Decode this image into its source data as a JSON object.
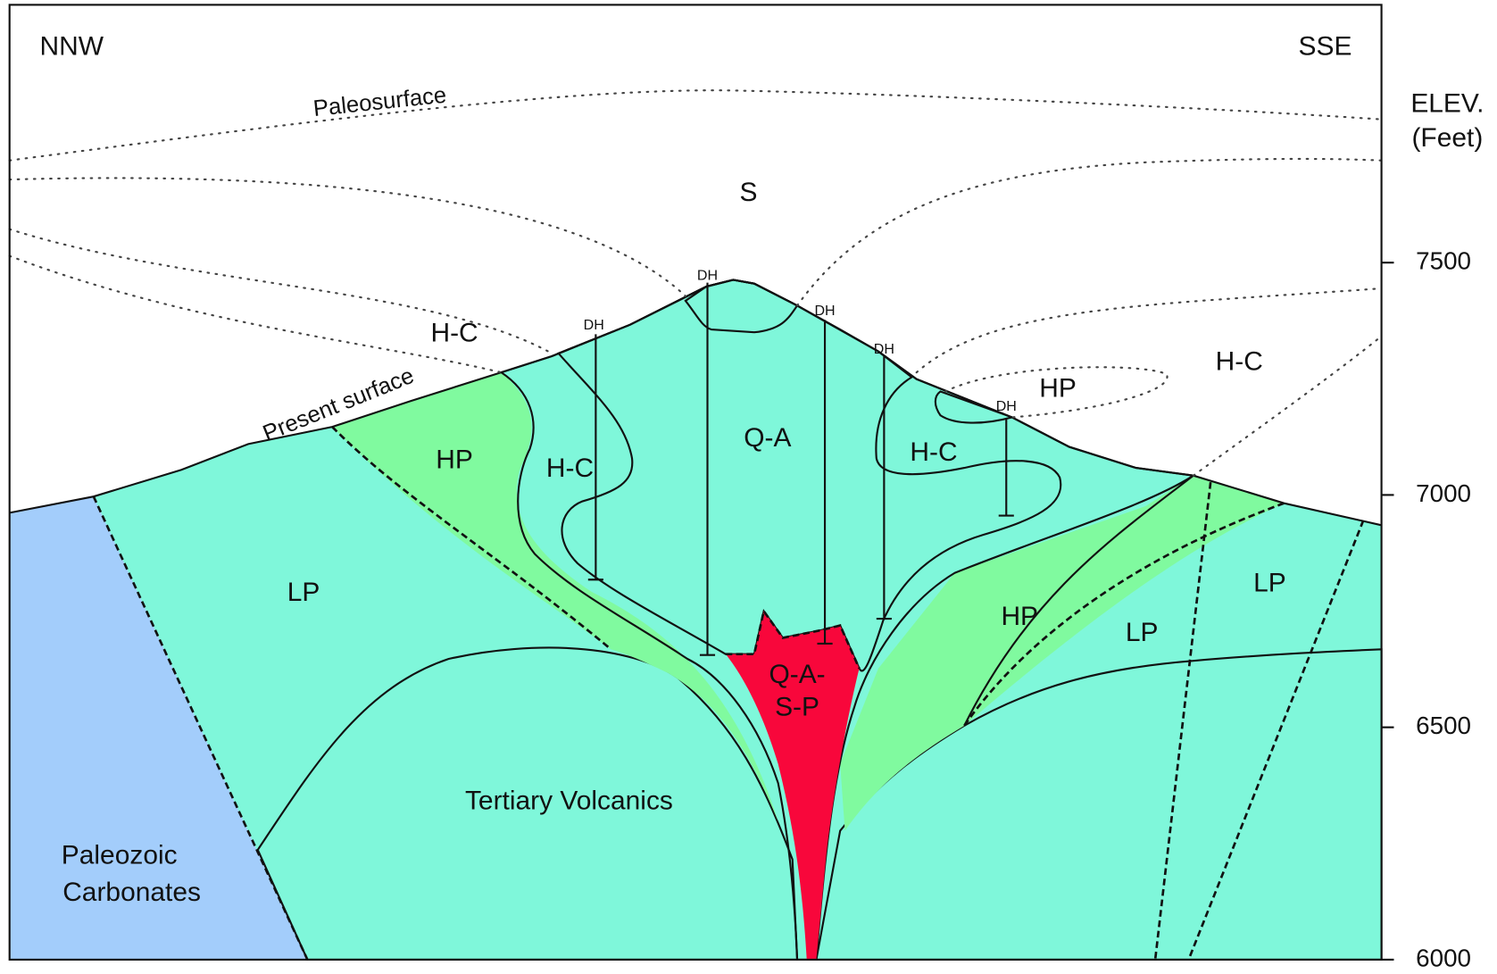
{
  "orientation": {
    "left": "NNW",
    "right": "SSE"
  },
  "surfaces": {
    "paleosurface": "Paleosurface",
    "present": "Present surface"
  },
  "units": {
    "s": "S",
    "hc_upper_left": "H-C",
    "hc_upper_right": "H-C",
    "hp_upper_right": "HP",
    "hp_left": "HP",
    "hc_left": "H-C",
    "qa": "Q-A",
    "hc_right": "H-C",
    "lp_left": "LP",
    "lp_right_upper": "LP",
    "hp_right": "HP",
    "lp_right": "LP",
    "qasp": [
      "Q-A-",
      "S-P"
    ],
    "tertiary": "Tertiary Volcanics",
    "paleozoic": [
      "Paleozoic",
      "Carbonates"
    ]
  },
  "drill_holes": [
    "DH",
    "DH",
    "DH",
    "DH",
    "DH"
  ],
  "elevation_axis": {
    "title": [
      "ELEV.",
      "(Feet)"
    ],
    "ticks": [
      7500,
      7000,
      6500,
      6000
    ]
  }
}
